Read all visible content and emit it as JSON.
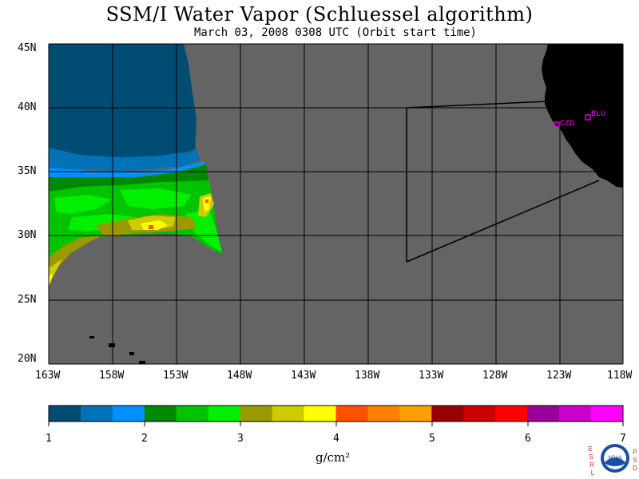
{
  "title": "SSM/I Water Vapor (Schluessel algorithm)",
  "subtitle": "March 03, 2008  0308 UTC  (Orbit start time)",
  "map": {
    "lat_labels": [
      "45N",
      "40N",
      "35N",
      "30N",
      "25N",
      "20N"
    ],
    "lon_labels": [
      "163W",
      "158W",
      "153W",
      "148W",
      "143W",
      "138W",
      "133W",
      "128W",
      "123W",
      "118W"
    ],
    "stations": [
      {
        "id": "czd",
        "label": "CZD"
      },
      {
        "id": "blu",
        "label": "BLU"
      }
    ],
    "colors": {
      "ocean_nodata": "#646464",
      "land": "#000000",
      "grid": "#000000",
      "station": "#ff00ff"
    }
  },
  "colorbar": {
    "unit": "g/cm²",
    "ticks": [
      "1",
      "2",
      "3",
      "4",
      "5",
      "6",
      "7"
    ],
    "colors": [
      "#004c73",
      "#0072b8",
      "#0090ff",
      "#008800",
      "#00c400",
      "#00f000",
      "#999900",
      "#cccc00",
      "#ffff00",
      "#ff5000",
      "#ff8000",
      "#ff9e00",
      "#990000",
      "#cc0000",
      "#ff0000",
      "#990099",
      "#cc00cc",
      "#ff00ff"
    ]
  },
  "logo": {
    "left_letters": [
      "E",
      "S",
      "R",
      "L"
    ],
    "right_letters": [
      "P",
      "S",
      "D"
    ],
    "center": "NOAA"
  }
}
